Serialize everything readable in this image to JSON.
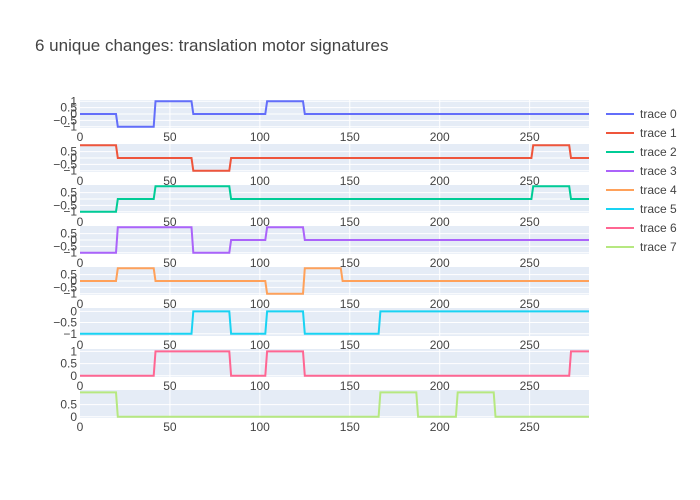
{
  "chart_data": {
    "type": "line",
    "title": "6 unique changes: translation motor signatures",
    "xlim": [
      0,
      283
    ],
    "x_ticks": [
      "0",
      "50",
      "100",
      "150",
      "200",
      "250"
    ],
    "grid": true,
    "legend_position": "right",
    "series": [
      {
        "name": "trace 0",
        "color": "#636efa",
        "ylim": [
          -1.1,
          1.1
        ],
        "y_ticks": [
          1,
          0.5,
          0,
          -0.5,
          -1
        ],
        "y_tick_labels": [
          "1",
          "0.5",
          "0",
          "−0.5",
          "−1"
        ],
        "points": [
          [
            0,
            0
          ],
          [
            20,
            0
          ],
          [
            21,
            -1
          ],
          [
            41,
            -1
          ],
          [
            42,
            1
          ],
          [
            62,
            1
          ],
          [
            63,
            0
          ],
          [
            103,
            0
          ],
          [
            104,
            1
          ],
          [
            124,
            1
          ],
          [
            125,
            0
          ],
          [
            283,
            0
          ]
        ]
      },
      {
        "name": "trace 1",
        "color": "#EF553B",
        "ylim": [
          -1.1,
          1.1
        ],
        "y_ticks": [
          0.5,
          0,
          -0.5,
          -1
        ],
        "y_tick_labels": [
          "0.5",
          "0",
          "−0.5",
          "−1"
        ],
        "points": [
          [
            0,
            1
          ],
          [
            20,
            1
          ],
          [
            21,
            0
          ],
          [
            62,
            0
          ],
          [
            63,
            -1
          ],
          [
            83,
            -1
          ],
          [
            84,
            0
          ],
          [
            251,
            0
          ],
          [
            252,
            1
          ],
          [
            272,
            1
          ],
          [
            273,
            0
          ],
          [
            283,
            0
          ]
        ]
      },
      {
        "name": "trace 2",
        "color": "#00cc96",
        "ylim": [
          -1.1,
          1.1
        ],
        "y_ticks": [
          0.5,
          0,
          -0.5,
          -1
        ],
        "y_tick_labels": [
          "0.5",
          "0",
          "−0.5",
          "−1"
        ],
        "points": [
          [
            0,
            -1
          ],
          [
            20,
            -1
          ],
          [
            21,
            0
          ],
          [
            41,
            0
          ],
          [
            42,
            1
          ],
          [
            83,
            1
          ],
          [
            84,
            0
          ],
          [
            251,
            0
          ],
          [
            252,
            1
          ],
          [
            272,
            1
          ],
          [
            273,
            0
          ],
          [
            283,
            0
          ]
        ]
      },
      {
        "name": "trace 3",
        "color": "#ab63fa",
        "ylim": [
          -1.1,
          1.1
        ],
        "y_ticks": [
          0.5,
          0,
          -0.5,
          -1
        ],
        "y_tick_labels": [
          "0.5",
          "0",
          "−0.5",
          "−1"
        ],
        "points": [
          [
            0,
            -1
          ],
          [
            20,
            -1
          ],
          [
            21,
            1
          ],
          [
            62,
            1
          ],
          [
            63,
            -1
          ],
          [
            83,
            -1
          ],
          [
            84,
            0
          ],
          [
            103,
            0
          ],
          [
            104,
            1
          ],
          [
            124,
            1
          ],
          [
            125,
            0
          ],
          [
            283,
            0
          ]
        ]
      },
      {
        "name": "trace 4",
        "color": "#FFA15A",
        "ylim": [
          -1.1,
          1.1
        ],
        "y_ticks": [
          0.5,
          0,
          -0.5,
          -1
        ],
        "y_tick_labels": [
          "0.5",
          "0",
          "−0.5",
          "−1"
        ],
        "points": [
          [
            0,
            0
          ],
          [
            20,
            0
          ],
          [
            21,
            1
          ],
          [
            41,
            1
          ],
          [
            42,
            0
          ],
          [
            103,
            0
          ],
          [
            104,
            -1
          ],
          [
            124,
            -1
          ],
          [
            125,
            1
          ],
          [
            145,
            1
          ],
          [
            146,
            0
          ],
          [
            283,
            0
          ]
        ]
      },
      {
        "name": "trace 5",
        "color": "#19d3f3",
        "ylim": [
          -1.1,
          0.15
        ],
        "y_ticks": [
          0,
          -0.5,
          -1
        ],
        "y_tick_labels": [
          "0",
          "−0.5",
          "−1"
        ],
        "points": [
          [
            0,
            -1
          ],
          [
            62,
            -1
          ],
          [
            63,
            0
          ],
          [
            83,
            0
          ],
          [
            84,
            -1
          ],
          [
            103,
            -1
          ],
          [
            104,
            0
          ],
          [
            124,
            0
          ],
          [
            125,
            -1
          ],
          [
            166,
            -1
          ],
          [
            167,
            0
          ],
          [
            283,
            0
          ]
        ]
      },
      {
        "name": "trace 6",
        "color": "#FF6692",
        "ylim": [
          -0.05,
          1.1
        ],
        "y_ticks": [
          1,
          0.5,
          0
        ],
        "y_tick_labels": [
          "1",
          "0.5",
          "0"
        ],
        "points": [
          [
            0,
            0
          ],
          [
            41,
            0
          ],
          [
            42,
            1
          ],
          [
            83,
            1
          ],
          [
            84,
            0
          ],
          [
            103,
            0
          ],
          [
            104,
            1
          ],
          [
            124,
            1
          ],
          [
            125,
            0
          ],
          [
            272,
            0
          ],
          [
            273,
            1
          ],
          [
            283,
            1
          ]
        ]
      },
      {
        "name": "trace 7",
        "color": "#B6E880",
        "ylim": [
          -0.05,
          1.1
        ],
        "y_ticks": [
          0.5,
          0
        ],
        "y_tick_labels": [
          "0.5",
          "0"
        ],
        "points": [
          [
            0,
            1
          ],
          [
            20,
            1
          ],
          [
            21,
            0
          ],
          [
            166,
            0
          ],
          [
            167,
            1
          ],
          [
            187,
            1
          ],
          [
            188,
            0
          ],
          [
            209,
            0
          ],
          [
            210,
            1
          ],
          [
            230,
            1
          ],
          [
            231,
            0
          ],
          [
            283,
            0
          ]
        ]
      }
    ]
  }
}
